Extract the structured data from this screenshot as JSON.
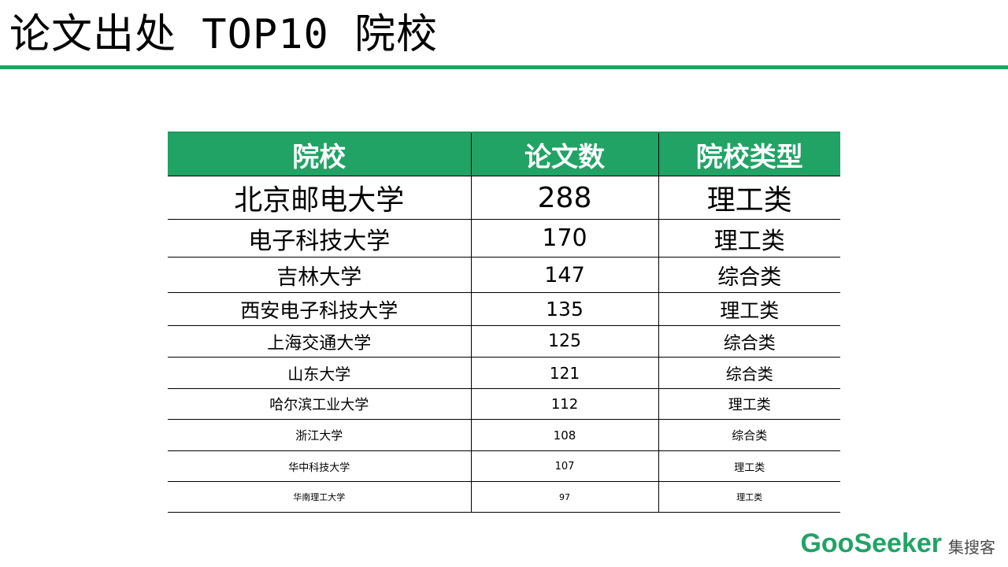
{
  "title": "论文出处 TOP10 院校",
  "accent_color": "#21a366",
  "table": {
    "headers": [
      "院校",
      "论文数",
      "院校类型"
    ],
    "rows": [
      {
        "school": "北京邮电大学",
        "count": "288",
        "type": "理工类"
      },
      {
        "school": "电子科技大学",
        "count": "170",
        "type": "理工类"
      },
      {
        "school": "吉林大学",
        "count": "147",
        "type": "综合类"
      },
      {
        "school": "西安电子科技大学",
        "count": "135",
        "type": "理工类"
      },
      {
        "school": "上海交通大学",
        "count": "125",
        "type": "综合类"
      },
      {
        "school": "山东大学",
        "count": "121",
        "type": "综合类"
      },
      {
        "school": "哈尔滨工业大学",
        "count": "112",
        "type": "理工类"
      },
      {
        "school": "浙江大学",
        "count": "108",
        "type": "综合类"
      },
      {
        "school": "华中科技大学",
        "count": "107",
        "type": "理工类"
      },
      {
        "school": "华南理工大学",
        "count": "97",
        "type": "理工类"
      }
    ]
  },
  "logo": {
    "latin": "GooSeeker",
    "chinese": "集搜客"
  }
}
